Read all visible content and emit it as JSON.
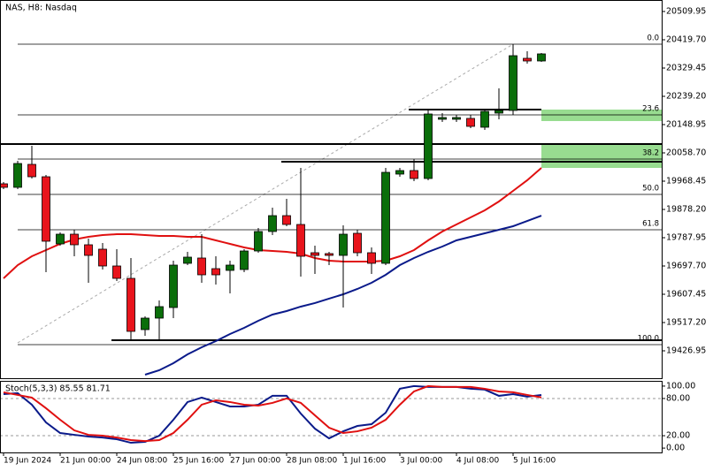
{
  "chart_data": [
    {
      "type": "candlestick",
      "title": "NAS, H8: Nasdaq",
      "categories": [
        "19 Jun 2024",
        null,
        null,
        null,
        "21 Jun 00:00",
        null,
        null,
        null,
        "24 Jun 08:00",
        null,
        null,
        null,
        "25 Jun 16:00",
        null,
        null,
        null,
        "27 Jun 00:00",
        null,
        null,
        null,
        "28 Jun 08:00",
        null,
        null,
        null,
        "1 Jul 16:00",
        null,
        null,
        null,
        "3 Jul 00:00",
        null,
        null,
        null,
        "4 Jul 08:00",
        null,
        null,
        null,
        "5 Jul 16:00",
        null,
        null
      ],
      "open": [
        19960.0,
        19948.7,
        20022.0,
        19982.5,
        19768.2,
        19799.2,
        19765.4,
        19751.3,
        19697.7,
        19658.2,
        19494.6,
        19531.3,
        19565.1,
        19706.2,
        19723.1,
        19689.2,
        19683.6,
        19686.4,
        19745.6,
        19807.7,
        19858.4,
        19830.2,
        19740.0,
        19737.2,
        19731.5,
        19802.0,
        19740.0,
        19706.2,
        19991.0,
        20002.3,
        19976.9,
        20165.9,
        20165.9,
        20168.7,
        20140.5,
        20185.6,
        20194.1,
        20360.5,
        20352.0
      ],
      "high": [
        19965.6,
        20033.3,
        20081.3,
        19988.2,
        19804.9,
        19813.3,
        19785.1,
        19771.0,
        19751.3,
        19723.1,
        19536.9,
        19587.7,
        19714.6,
        19742.8,
        19799.2,
        19728.7,
        19714.6,
        19751.3,
        19819.0,
        19883.8,
        19912.0,
        20010.7,
        19762.6,
        19742.8,
        19827.4,
        19813.3,
        19756.9,
        20010.7,
        20010.7,
        20038.9,
        20194.1,
        20185.6,
        20180.0,
        20180.0,
        20199.7,
        20264.6,
        20405.6,
        20383.0,
        20377.4
      ],
      "low": [
        19943.1,
        19943.1,
        19976.9,
        19677.9,
        19762.6,
        19728.7,
        19644.1,
        19686.4,
        19649.7,
        19460.8,
        19474.9,
        19460.8,
        19531.3,
        19700.5,
        19644.1,
        19638.5,
        19610.3,
        19677.9,
        19740.0,
        19796.4,
        19824.6,
        19663.8,
        19672.3,
        19700.5,
        19565.1,
        19728.7,
        19672.3,
        19700.5,
        19982.5,
        19968.4,
        19971.3,
        20157.4,
        20157.4,
        20137.7,
        20132.0,
        20165.9,
        20180.0,
        20343.5,
        20349.2
      ],
      "close": [
        19948.7,
        20024.8,
        19982.5,
        19776.7,
        19799.2,
        19765.4,
        19731.5,
        19697.7,
        19658.2,
        19489.0,
        19531.3,
        19568.0,
        19700.5,
        19725.9,
        19669.5,
        19669.5,
        19700.5,
        19745.6,
        19807.7,
        19858.4,
        19830.2,
        19728.7,
        19731.5,
        19731.5,
        19799.2,
        19740.0,
        19706.2,
        19996.6,
        20002.3,
        19976.9,
        20182.8,
        20171.5,
        20171.5,
        20143.3,
        20191.2,
        20194.1,
        20368.9,
        20352.0,
        20374.6
      ],
      "up_color": "#0a6e0a",
      "down_color": "#e8141c",
      "series": [
        {
          "color": "#e01010",
          "values": [
            19658.2,
            19700.5,
            19728.7,
            19748.5,
            19768.2,
            19782.3,
            19790.8,
            19796.4,
            19799.2,
            19799.2,
            19796.4,
            19793.6,
            19793.6,
            19790.8,
            19790.8,
            19779.5,
            19768.2,
            19756.9,
            19748.5,
            19745.6,
            19742.8,
            19737.2,
            19723.1,
            19714.6,
            19711.8,
            19711.8,
            19711.8,
            19714.6,
            19728.7,
            19748.5,
            19779.5,
            19807.7,
            19830.2,
            19852.8,
            19875.4,
            19903.6,
            19937.4,
            19971.3,
            20010.7
          ]
        },
        {
          "color": "#0a1a8a",
          "values": [
            null,
            null,
            null,
            null,
            null,
            null,
            null,
            null,
            null,
            null,
            19350.8,
            19364.9,
            19387.4,
            19415.6,
            19438.2,
            19458.0,
            19480.5,
            19500.3,
            19522.8,
            19542.6,
            19553.9,
            19568.0,
            19579.3,
            19593.5,
            19607.4,
            19624.4,
            19644.1,
            19669.5,
            19700.5,
            19723.1,
            19742.8,
            19759.7,
            19779.5,
            19790.8,
            19802.0,
            19813.3,
            19824.6,
            19841.5,
            19858.4
          ]
        }
      ],
      "ylim": [
        19339.5,
        20546.6
      ],
      "yticks": [
        20509.95,
        {
          "value": 20419.7,
          "label": "20419.70"
        },
        20329.45,
        {
          "value": 20239.2,
          "label": "20239.20"
        },
        20148.95,
        {
          "value": 20058.7,
          "label": "20058.70"
        },
        19968.45,
        {
          "value": 19878.2,
          "label": "19878.20"
        },
        19787.95,
        {
          "value": 19697.7,
          "label": "19697.70"
        },
        19607.45,
        {
          "value": 19517.2,
          "label": "19517.20"
        },
        19426.95
      ],
      "lines": [
        {
          "price": 20086.9,
          "from": 0
        },
        {
          "price": 20030.5,
          "from": 20
        },
        {
          "price": 20196.9,
          "from": 29,
          "to": 38
        },
        {
          "price": 19460.8,
          "from": 8
        }
      ],
      "zones": [
        {
          "top": 20196.9,
          "bottom": 20160.2,
          "from": 38,
          "color": "#98dc90"
        },
        {
          "top": 20084.1,
          "bottom": 20010.7,
          "from": 38,
          "color": "#98dc90"
        }
      ],
      "fib": {
        "from": 1,
        "levels": [
          {
            "label": "0.0",
            "price": 20405.6
          },
          {
            "label": "23.6",
            "price": 20180.0
          },
          {
            "label": "38.2",
            "price": 20038.9
          },
          {
            "label": "50.0",
            "price": 19926.1
          },
          {
            "label": "61.8",
            "price": 19813.3
          },
          {
            "label": "100.0",
            "price": 19446.7
          }
        ]
      },
      "trendline": {
        "from": 1,
        "start": 19452.3,
        "to": 36,
        "end": 20405.6
      }
    },
    {
      "type": "line",
      "title": "Stoch(5,3,3) 85.55 81.71",
      "series": [
        {
          "color": "#0a1a8a",
          "values": [
            87.1,
            88.6,
            70.0,
            41.4,
            24.3,
            21.4,
            18.6,
            17.1,
            14.3,
            8.6,
            10.0,
            20.0,
            45.7,
            74.3,
            81.4,
            74.3,
            67.1,
            67.1,
            70.0,
            84.3,
            84.3,
            55.7,
            31.4,
            15.7,
            27.1,
            35.7,
            38.6,
            57.1,
            95.7,
            100.0,
            98.6,
            98.6,
            98.6,
            95.7,
            94.3,
            84.3,
            87.1,
            82.9,
            85.55
          ]
        },
        {
          "color": "#e01010",
          "values": [
            90.0,
            85.7,
            81.4,
            64.3,
            45.7,
            28.6,
            21.4,
            20.0,
            17.1,
            12.9,
            11.4,
            12.9,
            24.3,
            45.7,
            70.0,
            77.1,
            74.3,
            70.0,
            68.6,
            72.9,
            80.0,
            72.9,
            52.9,
            32.9,
            24.3,
            27.1,
            32.9,
            45.7,
            70.0,
            91.4,
            100.0,
            98.6,
            98.6,
            98.6,
            95.7,
            91.4,
            90.0,
            85.7,
            81.71
          ]
        }
      ],
      "ylim": [
        -7,
        107
      ],
      "yticks": [
        {
          "value": 100,
          "label": "100.00"
        },
        {
          "value": 80,
          "label": "80.00"
        },
        {
          "value": 20,
          "label": "20.00"
        },
        {
          "value": 0,
          "label": "0.00"
        }
      ],
      "levels": [
        80,
        20
      ]
    }
  ]
}
